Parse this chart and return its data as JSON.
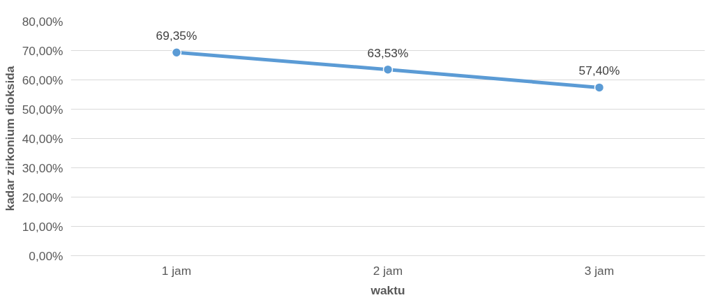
{
  "chart_data": {
    "type": "line",
    "xlabel": "waktu",
    "ylabel": "kadar zirkonium dioksida",
    "categories": [
      "1 jam",
      "2 jam",
      "3 jam"
    ],
    "series": [
      {
        "color": "#5b9bd5",
        "values": [
          69.35,
          63.53,
          57.4
        ],
        "value_labels": [
          "69,35%",
          "63,53%",
          "57,40%"
        ]
      }
    ],
    "ylim": [
      0,
      80
    ],
    "yticks": [
      {
        "value": 0,
        "label": "0,00%"
      },
      {
        "value": 10,
        "label": "10,00%"
      },
      {
        "value": 20,
        "label": "20,00%"
      },
      {
        "value": 30,
        "label": "30,00%"
      },
      {
        "value": 40,
        "label": "40,00%"
      },
      {
        "value": 50,
        "label": "50,00%"
      },
      {
        "value": 60,
        "label": "60,00%"
      },
      {
        "value": 70,
        "label": "70,00%"
      },
      {
        "value": 80,
        "label": "80,00%"
      }
    ],
    "grid": "y",
    "marker": "circle",
    "line_style": "solid"
  }
}
